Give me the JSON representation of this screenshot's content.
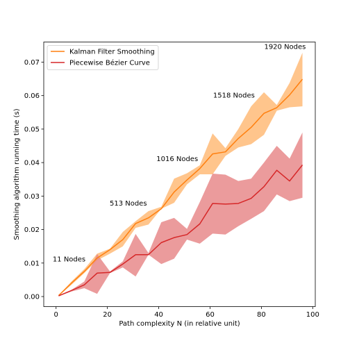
{
  "chart_data": {
    "type": "line",
    "xlabel": "Path complexity N (in relative unit)",
    "ylabel": "Smoothing algorithm running time (s)",
    "xlim": [
      -4.8,
      101
    ],
    "ylim": [
      -0.003,
      0.076
    ],
    "xticks": [
      0,
      20,
      40,
      60,
      80,
      100
    ],
    "yticks": [
      0.0,
      0.01,
      0.02,
      0.03,
      0.04,
      0.05,
      0.06,
      0.07
    ],
    "ytick_labels": [
      "0.00",
      "0.01",
      "0.02",
      "0.03",
      "0.04",
      "0.05",
      "0.06",
      "0.07"
    ],
    "grid": false,
    "legend_position": "top-left",
    "x": [
      1,
      6,
      11,
      16,
      21,
      26,
      31,
      36,
      41,
      46,
      51,
      56,
      61,
      66,
      71,
      76,
      81,
      86,
      91,
      96
    ],
    "series": [
      {
        "name": "Kalman Filter Smoothing",
        "color": "#ff7f0e",
        "band_color": "#ffbb78",
        "values": [
          0.0003,
          0.004,
          0.0075,
          0.0115,
          0.014,
          0.017,
          0.0218,
          0.0235,
          0.0262,
          0.0312,
          0.0348,
          0.0382,
          0.0426,
          0.0432,
          0.0472,
          0.0505,
          0.0547,
          0.0564,
          0.0602,
          0.0649
        ],
        "lower": [
          0.0002,
          0.0035,
          0.007,
          0.0108,
          0.0128,
          0.015,
          0.0205,
          0.0215,
          0.0262,
          0.028,
          0.0335,
          0.0365,
          0.0365,
          0.042,
          0.0445,
          0.0455,
          0.0483,
          0.0555,
          0.0565,
          0.0568
        ],
        "upper": [
          0.0004,
          0.0045,
          0.0082,
          0.0128,
          0.0143,
          0.0193,
          0.0225,
          0.0255,
          0.0268,
          0.0352,
          0.0368,
          0.0392,
          0.0487,
          0.0443,
          0.05,
          0.0568,
          0.061,
          0.0572,
          0.0638,
          0.0728
        ]
      },
      {
        "name": "Piecewise Bézier Curve",
        "color": "#d62728",
        "band_color": "#e88a8b",
        "values": [
          0.0002,
          0.0018,
          0.0035,
          0.007,
          0.0072,
          0.0097,
          0.0125,
          0.0125,
          0.0161,
          0.0176,
          0.0185,
          0.0217,
          0.0278,
          0.0276,
          0.0278,
          0.0293,
          0.0328,
          0.0377,
          0.0345,
          0.0393
        ],
        "lower": [
          0.0001,
          0.0015,
          0.0025,
          0.0008,
          0.007,
          0.0087,
          0.006,
          0.0125,
          0.0097,
          0.0113,
          0.017,
          0.0158,
          0.0188,
          0.0185,
          0.021,
          0.0232,
          0.0255,
          0.0305,
          0.0285,
          0.0295
        ],
        "upper": [
          0.0003,
          0.002,
          0.0045,
          0.0127,
          0.0075,
          0.0105,
          0.0187,
          0.013,
          0.0222,
          0.0235,
          0.0202,
          0.0282,
          0.0367,
          0.0364,
          0.0345,
          0.0352,
          0.04,
          0.045,
          0.0412,
          0.049
        ]
      }
    ],
    "annotations": [
      {
        "text": "11 Nodes",
        "x": -1.3,
        "y": 0.0105
      },
      {
        "text": "513 Nodes",
        "x": 20.9,
        "y": 0.0272
      },
      {
        "text": "1016 Nodes",
        "x": 39.1,
        "y": 0.0404
      },
      {
        "text": "1518 Nodes",
        "x": 61.2,
        "y": 0.0594
      },
      {
        "text": "1920 Nodes",
        "x": 81.1,
        "y": 0.0739
      }
    ]
  }
}
